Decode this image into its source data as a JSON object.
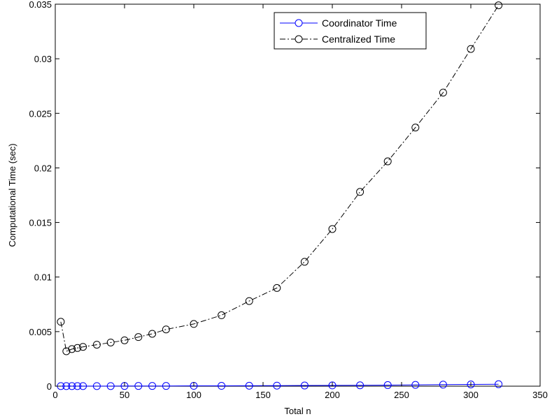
{
  "chart_data": {
    "type": "line",
    "xlabel": "Total n",
    "ylabel": "Computational Time (sec)",
    "xlim": [
      0,
      350
    ],
    "ylim": [
      0,
      0.035
    ],
    "xticks": [
      0,
      50,
      100,
      150,
      200,
      250,
      300,
      350
    ],
    "yticks": [
      0,
      0.005,
      0.01,
      0.015,
      0.02,
      0.025,
      0.03,
      0.035
    ],
    "xtick_labels": [
      "0",
      "50",
      "100",
      "150",
      "200",
      "250",
      "300",
      "350"
    ],
    "ytick_labels": [
      "0",
      "0.005",
      "0.01",
      "0.015",
      "0.02",
      "0.025",
      "0.03",
      "0.035"
    ],
    "grid": false,
    "legend_position": "top-right",
    "series": [
      {
        "name": "Coordinator Time",
        "color": "#0000ff",
        "line_style": "solid",
        "marker": "circle",
        "x": [
          4,
          8,
          12,
          16,
          20,
          30,
          40,
          50,
          60,
          70,
          80,
          100,
          120,
          140,
          160,
          180,
          200,
          220,
          240,
          260,
          280,
          300,
          320
        ],
        "y": [
          1e-05,
          1e-05,
          1e-05,
          1e-05,
          1e-05,
          1e-05,
          1e-05,
          2e-05,
          2e-05,
          2e-05,
          2e-05,
          3e-05,
          3e-05,
          4e-05,
          5e-05,
          6e-05,
          7e-05,
          8e-05,
          0.0001,
          0.00012,
          0.00014,
          0.00016,
          0.00018
        ]
      },
      {
        "name": "Centralized Time",
        "color": "#000000",
        "line_style": "dashdot",
        "marker": "circle",
        "x": [
          4,
          8,
          12,
          16,
          20,
          30,
          40,
          50,
          60,
          70,
          80,
          100,
          120,
          140,
          160,
          180,
          200,
          220,
          240,
          260,
          280,
          300,
          320
        ],
        "y": [
          0.0059,
          0.0032,
          0.0034,
          0.0035,
          0.0036,
          0.0038,
          0.004,
          0.0042,
          0.0045,
          0.0048,
          0.0052,
          0.0057,
          0.0065,
          0.0078,
          0.009,
          0.0114,
          0.0144,
          0.0178,
          0.0206,
          0.0237,
          0.0269,
          0.0309,
          0.0349
        ]
      }
    ]
  }
}
